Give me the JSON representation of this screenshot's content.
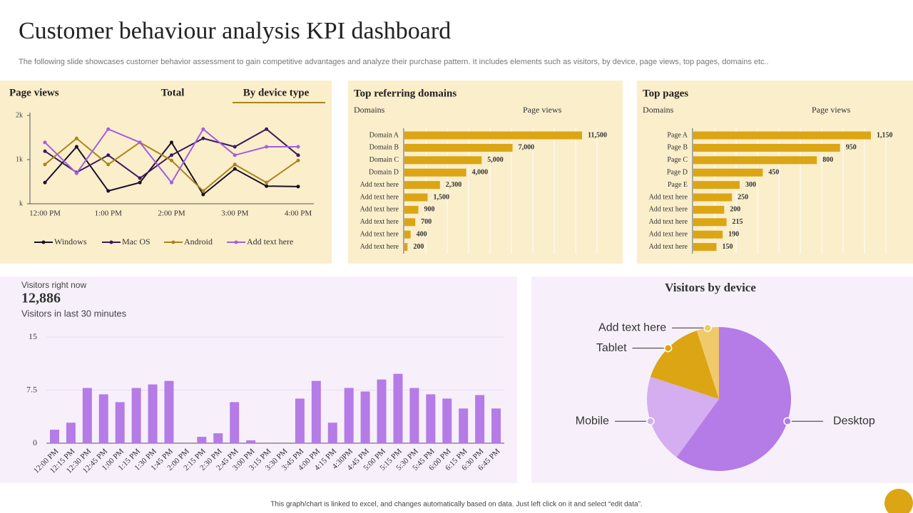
{
  "header": {
    "title": "Customer behaviour analysis KPI dashboard",
    "subtitle": "The following slide showcases customer behavior assessment to gain competitive advantages and analyze their purchase pattern. It includes elements such as visitors, by device, page views, top pages, domains etc.."
  },
  "footer": "This graph/chart is linked to excel, and changes automatically based on data. Just left click on it and select “edit data”.",
  "chart_data": [
    {
      "type": "line",
      "title": "Page views",
      "tabs": [
        "Total",
        "By device type"
      ],
      "categories": [
        "12:00 PM",
        null,
        "1:00 PM",
        null,
        "2:00 PM",
        null,
        "3:00 PM",
        null,
        "4:00 PM"
      ],
      "ylim": [
        0,
        2000
      ],
      "yticks": [
        {
          "value": 0,
          "label": "k"
        },
        {
          "value": 1000,
          "label": "1k"
        },
        {
          "value": 2000,
          "label": "2k"
        }
      ],
      "series": [
        {
          "name": "Windows",
          "color": "#1a1028",
          "values": [
            480,
            1290,
            290,
            480,
            1390,
            210,
            790,
            400,
            390
          ]
        },
        {
          "name": "Mac OS",
          "color": "#3b1a5a",
          "values": [
            1190,
            710,
            1100,
            580,
            1100,
            1480,
            1290,
            1690,
            1100
          ]
        },
        {
          "name": "Android",
          "color": "#a8861a",
          "values": [
            890,
            1480,
            890,
            1390,
            980,
            290,
            890,
            480,
            980
          ]
        },
        {
          "name": "Add text here",
          "color": "#a25ee0",
          "values": [
            1390,
            690,
            1690,
            1390,
            480,
            1690,
            1100,
            1290,
            1290
          ]
        }
      ]
    },
    {
      "type": "hbar",
      "title": "Top referring domains",
      "columns": [
        "Domains",
        "Page views"
      ],
      "color": "#dba514",
      "categories": [
        "Domain A",
        "Domain B",
        "Domain C",
        "Domain D",
        "Add text here",
        "Add text here",
        "Add text here",
        "Add text here",
        "Add text here",
        "Add text here"
      ],
      "values": [
        11500,
        7000,
        5000,
        4000,
        2300,
        1500,
        900,
        700,
        400,
        200
      ],
      "value_labels": [
        "11,500",
        "7,000",
        "5,000",
        "4,000",
        "2,300",
        "1,500",
        "900",
        "700",
        "400",
        "200"
      ]
    },
    {
      "type": "hbar",
      "title": "Top pages",
      "columns": [
        "Domains",
        "Page views"
      ],
      "color": "#dba514",
      "categories": [
        "Page A",
        "Page B",
        "Page C",
        "Page D",
        "Page E",
        "Add text here",
        "Add text here",
        "Add text here",
        "Add text here",
        "Add text here"
      ],
      "values": [
        1150,
        950,
        800,
        450,
        300,
        250,
        200,
        215,
        190,
        150
      ],
      "value_labels": [
        "1,150",
        "950",
        "800",
        "450",
        "300",
        "250",
        "200",
        "215",
        "190",
        "150"
      ]
    },
    {
      "type": "bar",
      "kpi_label": "Visitors right now",
      "kpi_value": "12,886",
      "subtitle": "Visitors in last 30 minutes",
      "color": "#b57be6",
      "categories": [
        "12:00 PM",
        "12:15 PM",
        "12:30 PM",
        "12:45 PM",
        "1:00 PM",
        "1:15 PM",
        "1:30 PM",
        "1:45 PM",
        "2:00 PM",
        "2:15 PM",
        "2:30 PM",
        "2:45 PM",
        "3:00 PM",
        "3:15 PM",
        "3:30 PM",
        "3:45 PM",
        "4:00 PM",
        "4:15 PM",
        "4:30PM",
        "4:45 PM",
        "5:00 PM",
        "5:15 PM",
        "5:30 PM",
        "5:45 PM",
        "6:00 PM",
        "6:15 PM",
        "6:30 PM",
        "6:45 PM"
      ],
      "values": [
        1.9,
        2.9,
        7.8,
        6.9,
        5.8,
        7.8,
        8.3,
        8.8,
        0,
        0.9,
        1.4,
        5.8,
        0.4,
        0,
        0,
        6.3,
        8.8,
        2.9,
        7.8,
        7.3,
        9.0,
        9.8,
        7.8,
        6.9,
        6.3,
        4.9,
        6.8,
        4.9
      ],
      "ylim": [
        0,
        15
      ],
      "yticks": [
        0,
        7.5,
        15
      ],
      "grid": true
    },
    {
      "type": "pie",
      "title": "Visitors by device",
      "categories": [
        "Desktop",
        "Mobile",
        "Tablet",
        "Add text here"
      ],
      "values": [
        60,
        20,
        15,
        5
      ],
      "colors": [
        "#b57be6",
        "#d4aef0",
        "#dba514",
        "#f0c96a"
      ]
    }
  ]
}
